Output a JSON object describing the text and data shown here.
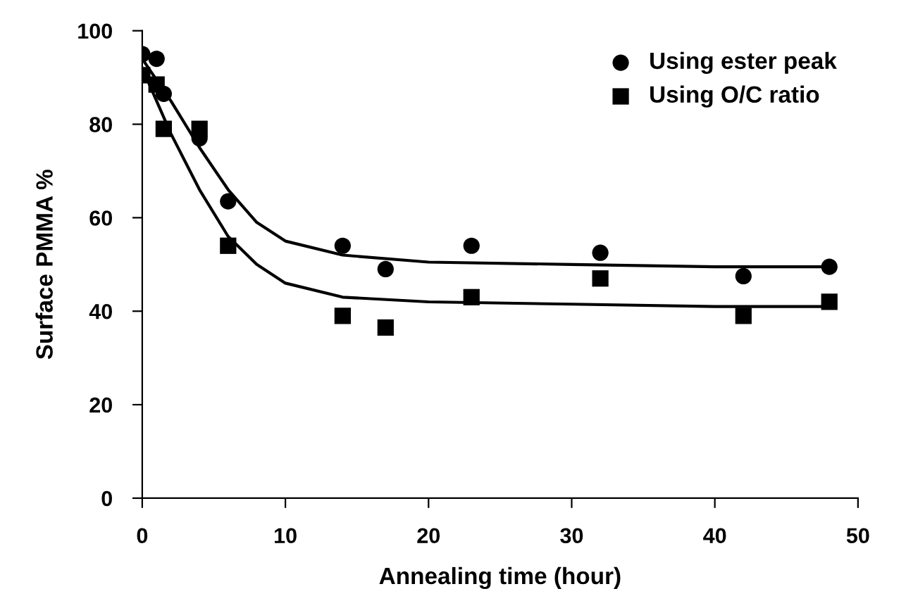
{
  "chart_data": {
    "type": "scatter",
    "xlabel": "Annealing time (hour)",
    "ylabel": "Surface PMMA %",
    "xlim": [
      0,
      50
    ],
    "xticks": [
      0,
      10,
      20,
      30,
      40,
      50
    ],
    "ylim": [
      0,
      100
    ],
    "yticks": [
      0,
      20,
      40,
      60,
      80,
      100
    ],
    "grid": false,
    "legend": "top right",
    "series": [
      {
        "name": "Using ester peak",
        "color": "#000000",
        "marker": "circle",
        "x": [
          0,
          1,
          1.5,
          4,
          6,
          14,
          17,
          23,
          32,
          42,
          48
        ],
        "values": [
          95,
          94,
          86.5,
          77,
          63.5,
          54,
          49,
          54,
          52.5,
          47.5,
          49.5
        ]
      },
      {
        "name": "Using O/C ratio",
        "color": "#000000",
        "marker": "square",
        "x": [
          0,
          1,
          1.5,
          4,
          6,
          14,
          17,
          23,
          32,
          42,
          48
        ],
        "values": [
          90.5,
          88.5,
          79,
          79,
          54,
          39,
          36.5,
          43,
          47,
          39,
          42
        ]
      },
      {
        "type": "line",
        "color": "#000000",
        "marker": "none",
        "x": [
          0,
          2,
          4,
          6,
          8,
          10,
          14,
          20,
          30,
          40,
          48
        ],
        "values": [
          94,
          85,
          75,
          66,
          59,
          55,
          52,
          50.5,
          50,
          49.5,
          49.5
        ]
      },
      {
        "type": "line",
        "color": "#000000",
        "marker": "none",
        "x": [
          0,
          2,
          4,
          6,
          8,
          10,
          14,
          20,
          30,
          40,
          48
        ],
        "values": [
          92,
          78,
          66,
          56,
          50,
          46,
          43,
          42,
          41.5,
          41,
          41
        ]
      }
    ]
  }
}
